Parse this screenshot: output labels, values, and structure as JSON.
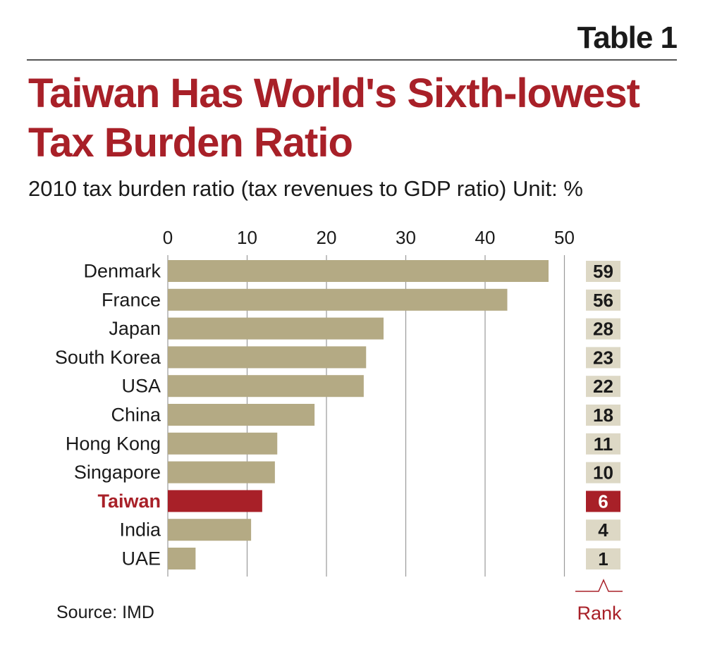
{
  "header": {
    "table_label": "Table 1",
    "title_line1": "Taiwan Has World's Sixth-lowest",
    "title_line2": "Tax Burden Ratio",
    "subtitle": "2010 tax burden ratio (tax revenues to GDP ratio)  Unit: %"
  },
  "footer": {
    "source": "Source: IMD"
  },
  "colors": {
    "bar": "#b4aa84",
    "highlight": "#a82028",
    "rank_box": "#ddd8c5",
    "grid": "#9a9a9a",
    "text": "#1a1a1a"
  },
  "chart_data": {
    "type": "bar",
    "orientation": "horizontal",
    "title": "2010 tax burden ratio (tax revenues to GDP ratio)",
    "unit": "%",
    "xlim": [
      0,
      50
    ],
    "xticks": [
      0,
      10,
      20,
      30,
      40,
      50
    ],
    "grid": true,
    "categories": [
      "Denmark",
      "France",
      "Japan",
      "South Korea",
      "USA",
      "China",
      "Hong Kong",
      "Singapore",
      "Taiwan",
      "India",
      "UAE"
    ],
    "values": [
      48.0,
      42.8,
      27.2,
      25.0,
      24.7,
      18.5,
      13.8,
      13.5,
      11.9,
      10.5,
      3.5
    ],
    "highlight": "Taiwan",
    "rank_label": "Rank",
    "ranks": [
      "59",
      "56",
      "28",
      "23",
      "22",
      "18",
      "11",
      "10",
      "6",
      "4",
      "1"
    ]
  }
}
